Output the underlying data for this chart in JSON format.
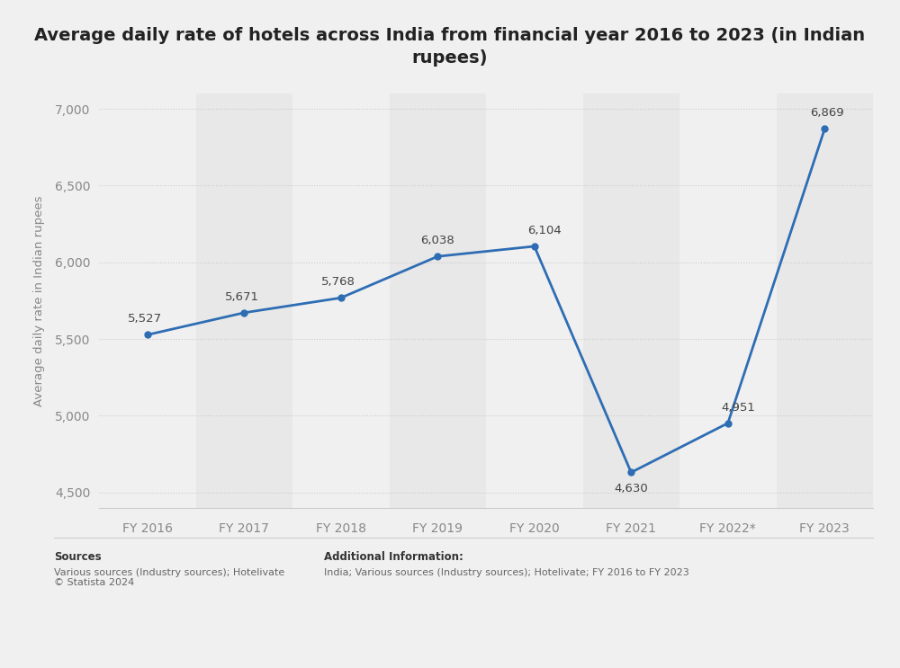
{
  "title": "Average daily rate of hotels across India from financial year 2016 to 2023 (in Indian\nrupees)",
  "ylabel": "Average daily rate in Indian rupees",
  "categories": [
    "FY 2016",
    "FY 2017",
    "FY 2018",
    "FY 2019",
    "FY 2020",
    "FY 2021",
    "FY 2022*",
    "FY 2023"
  ],
  "values": [
    5527,
    5671,
    5768,
    6038,
    6104,
    4630,
    4951,
    6869
  ],
  "ylim": [
    4400,
    7100
  ],
  "yticks": [
    4500,
    5000,
    5500,
    6000,
    6500,
    7000
  ],
  "line_color": "#2e6db4",
  "marker_color": "#2e6db4",
  "bg_color": "#f0f0f0",
  "plot_bg_color": "#f0f0f0",
  "stripe_color": "#e8e8e8",
  "grid_color": "#cccccc",
  "title_fontsize": 14,
  "label_fontsize": 9.5,
  "tick_fontsize": 10,
  "annotation_fontsize": 9.5,
  "sources_bold": "Sources",
  "sources_text": "Various sources (Industry sources); Hotelivate\n© Statista 2024",
  "additional_bold": "Additional Information:",
  "additional_text": "India; Various sources (Industry sources); Hotelivate; FY 2016 to FY 2023"
}
